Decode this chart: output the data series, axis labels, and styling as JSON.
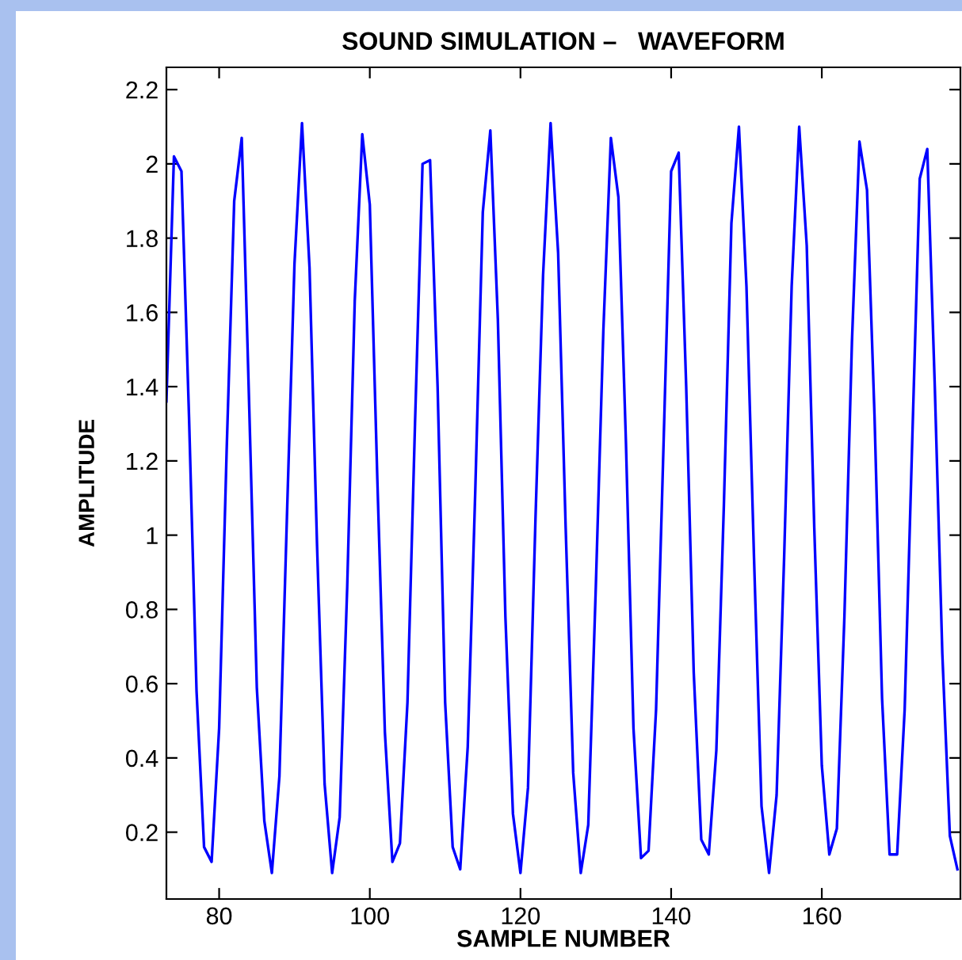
{
  "chart_data": {
    "type": "line",
    "title": "SOUND SIMULATION –   WAVEFORM",
    "xlabel": "SAMPLE NUMBER",
    "ylabel": "AMPLITUDE",
    "xlim": [
      73,
      178.4
    ],
    "xticks": [
      80,
      100,
      120,
      140,
      160
    ],
    "ylim": [
      0.02,
      2.26
    ],
    "yticks": [
      0.2,
      0.4,
      0.6,
      0.8,
      1,
      1.2,
      1.4,
      1.6,
      1.8,
      2,
      2.2
    ],
    "marker": "none",
    "line_style": "solid",
    "series": [
      {
        "color": "#0000ff",
        "x": [
          73,
          74,
          75,
          76,
          77,
          78,
          79,
          80,
          81,
          82,
          83,
          84,
          85,
          86,
          87,
          88,
          89,
          90,
          91,
          92,
          93,
          94,
          95,
          96,
          97,
          98,
          99,
          100,
          101,
          102,
          103,
          104,
          105,
          106,
          107,
          108,
          109,
          110,
          111,
          112,
          113,
          114,
          115,
          116,
          117,
          118,
          119,
          120,
          121,
          122,
          123,
          124,
          125,
          126,
          127,
          128,
          129,
          130,
          131,
          132,
          133,
          134,
          135,
          136,
          137,
          138,
          139,
          140,
          141,
          142,
          143,
          144,
          145,
          146,
          147,
          148,
          149,
          150,
          151,
          152,
          153,
          154,
          155,
          156,
          157,
          158,
          159,
          160,
          161,
          162,
          163,
          164,
          165,
          166,
          167,
          168,
          169,
          170,
          171,
          172,
          173,
          174,
          175,
          176,
          177,
          178
        ],
        "values": [
          1.36,
          2.02,
          1.98,
          1.32,
          0.58,
          0.16,
          0.12,
          0.48,
          1.23,
          1.9,
          2.07,
          1.34,
          0.59,
          0.23,
          0.09,
          0.35,
          1.05,
          1.73,
          2.11,
          1.72,
          0.97,
          0.33,
          0.09,
          0.24,
          0.86,
          1.63,
          2.08,
          1.89,
          1.15,
          0.47,
          0.12,
          0.17,
          0.55,
          1.3,
          2.0,
          2.01,
          1.4,
          0.55,
          0.16,
          0.1,
          0.43,
          1.12,
          1.87,
          2.09,
          1.58,
          0.78,
          0.25,
          0.09,
          0.32,
          1.05,
          1.7,
          2.11,
          1.76,
          1.02,
          0.36,
          0.09,
          0.22,
          0.86,
          1.55,
          2.07,
          1.91,
          1.25,
          0.48,
          0.13,
          0.15,
          0.53,
          1.25,
          1.98,
          2.03,
          1.4,
          0.63,
          0.18,
          0.14,
          0.42,
          1.08,
          1.84,
          2.1,
          1.67,
          0.94,
          0.27,
          0.09,
          0.3,
          0.94,
          1.67,
          2.1,
          1.78,
          1.02,
          0.38,
          0.14,
          0.21,
          0.78,
          1.52,
          2.06,
          1.93,
          1.32,
          0.56,
          0.14,
          0.14,
          0.53,
          1.25,
          1.96,
          2.04,
          1.4,
          0.68,
          0.19,
          0.1
        ]
      }
    ]
  }
}
